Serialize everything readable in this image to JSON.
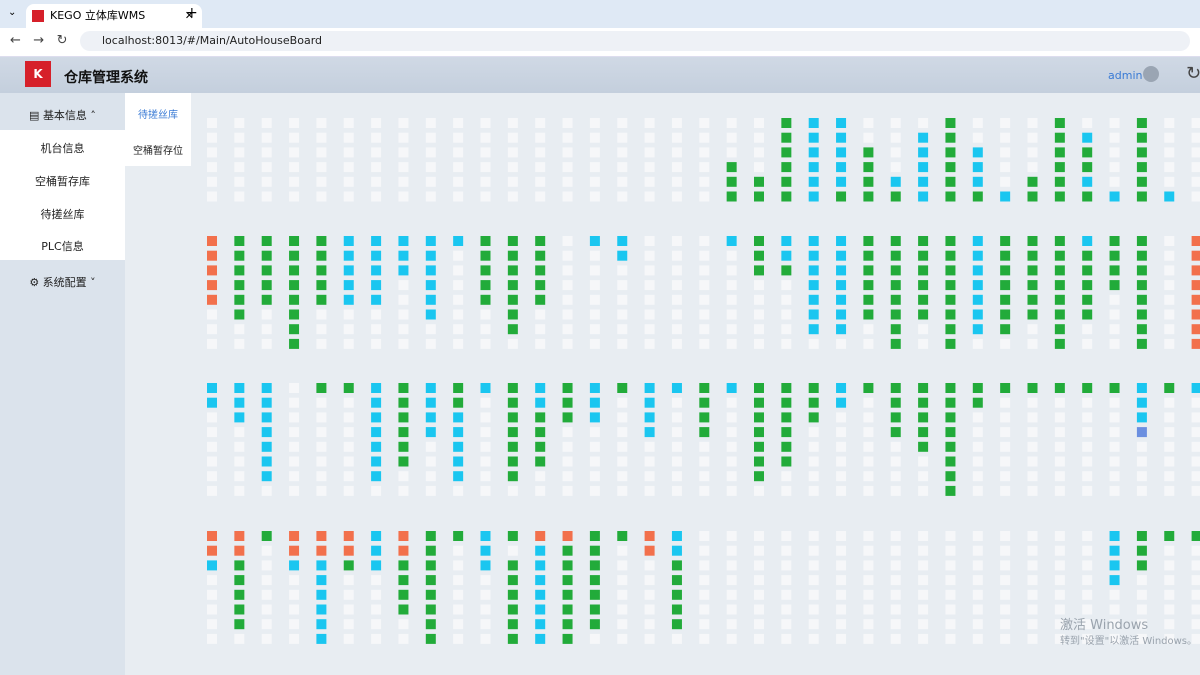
{
  "browser": {
    "tab_title": "KEGO 立体库WMS",
    "url": "localhost:8013/#/Main/AutoHouseBoard"
  },
  "header": {
    "title": "仓库管理系统",
    "user": "admin"
  },
  "sidebar": {
    "groups": [
      {
        "label": "基本信息",
        "items": [
          "机台信息",
          "空桶暂存库",
          "待搓丝库",
          "PLC信息"
        ]
      },
      {
        "label": "系统配置",
        "items": []
      }
    ]
  },
  "subtabs": [
    "待搓丝库",
    "空桶暂存位"
  ],
  "watermark": {
    "line1": "激活 Windows",
    "line2": "转到\"设置\"以激活 Windows。"
  }
}
